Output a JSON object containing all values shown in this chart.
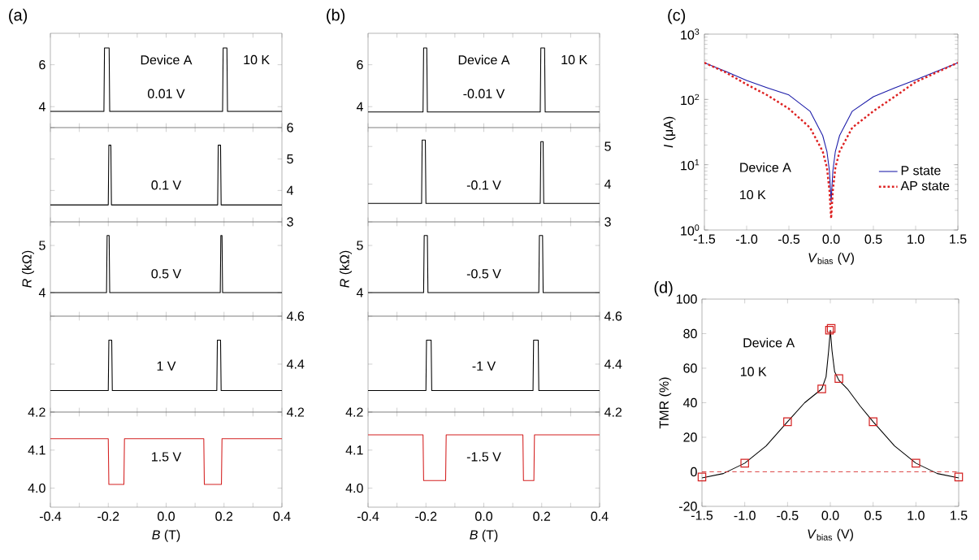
{
  "chart_data": [
    {
      "type": "line",
      "color": "#000000",
      "annotations": [
        "0.01 V",
        "Device A",
        "10 K",
        "(a)"
      ],
      "xlim": [
        -0.4,
        0.4
      ],
      "xticks": [
        -0.4,
        -0.3,
        -0.2,
        -0.1,
        0,
        0.1,
        0.2,
        0.3,
        0.4
      ],
      "ylim": [
        3,
        7.5
      ],
      "yticks": [
        4,
        6
      ],
      "tick_labels": "y",
      "x": [
        -0.4,
        -0.215,
        -0.213,
        -0.197,
        -0.195,
        0.195,
        0.197,
        0.21,
        0.212,
        0.4
      ],
      "values": [
        3.77,
        3.77,
        6.8,
        6.8,
        3.77,
        3.77,
        6.8,
        6.8,
        3.77,
        3.77
      ]
    },
    {
      "type": "line",
      "color": "#000000",
      "annotations": [
        "0.1 V"
      ],
      "xlim": [
        -0.4,
        0.4
      ],
      "xticks": [
        -0.4,
        -0.3,
        -0.2,
        -0.1,
        0,
        0.1,
        0.2,
        0.3,
        0.4
      ],
      "ylim": [
        3,
        6
      ],
      "yticks": [
        3,
        4,
        5,
        6
      ],
      "tick_labels": "y",
      "x": [
        -0.4,
        -0.2,
        -0.198,
        -0.191,
        -0.189,
        0.178,
        0.18,
        0.188,
        0.19,
        0.4
      ],
      "values": [
        3.54,
        3.54,
        5.44,
        5.44,
        3.54,
        3.54,
        5.44,
        5.44,
        3.54,
        3.54
      ]
    },
    {
      "type": "line",
      "color": "#000000",
      "annotations": [
        "0.5 V"
      ],
      "ylabel": "*R* (kΩ)",
      "xlim": [
        -0.4,
        0.4
      ],
      "xticks": [
        -0.4,
        -0.3,
        -0.2,
        -0.1,
        0,
        0.1,
        0.2,
        0.3,
        0.4
      ],
      "ylim": [
        3.5,
        5.5
      ],
      "yticks": [
        4,
        5
      ],
      "tick_labels": "y",
      "x": [
        -0.4,
        -0.206,
        -0.204,
        -0.197,
        -0.195,
        0.187,
        0.189,
        0.193,
        0.195,
        0.4
      ],
      "values": [
        4.0,
        4.0,
        5.21,
        5.21,
        4.0,
        4.0,
        5.21,
        5.21,
        4.0,
        4.0
      ]
    },
    {
      "type": "line",
      "color": "#000000",
      "annotations": [
        "1 V"
      ],
      "xlim": [
        -0.4,
        0.4
      ],
      "xticks": [
        -0.4,
        -0.3,
        -0.2,
        -0.1,
        0,
        0.1,
        0.2,
        0.3,
        0.4
      ],
      "ylim": [
        4.2,
        4.6
      ],
      "yticks": [
        4.2,
        4.4,
        4.6
      ],
      "tick_labels": "y",
      "x": [
        -0.4,
        -0.2,
        -0.198,
        -0.188,
        -0.186,
        0.175,
        0.177,
        0.188,
        0.19,
        0.4
      ],
      "values": [
        4.29,
        4.29,
        4.5,
        4.5,
        4.29,
        4.29,
        4.5,
        4.5,
        4.29,
        4.29
      ]
    },
    {
      "type": "line",
      "color": "#d42020",
      "annotations": [
        "1.5 V"
      ],
      "xlabel": "*B* (T)",
      "xlim": [
        -0.4,
        0.4
      ],
      "xticks": [
        -0.4,
        {
          "value": -0.3,
          "label": null
        },
        -0.2,
        {
          "value": -0.1,
          "label": null
        },
        {
          "value": 0,
          "label": "0.0"
        },
        {
          "value": 0.1,
          "label": null
        },
        0.2,
        {
          "value": 0.3,
          "label": null
        },
        0.4
      ],
      "ylim": [
        3.95,
        4.2
      ],
      "yticks": [
        {
          "value": 4,
          "label": "4.0"
        },
        4.1,
        4.2
      ],
      "x": [
        -0.4,
        -0.2,
        -0.198,
        -0.146,
        -0.144,
        0.13,
        0.132,
        0.191,
        0.193,
        0.4
      ],
      "values": [
        4.13,
        4.13,
        4.01,
        4.01,
        4.13,
        4.13,
        4.01,
        4.01,
        4.13,
        4.13
      ]
    },
    {
      "type": "line",
      "color": "#000000",
      "annotations": [
        "-0.01 V",
        "Device A",
        "10 K",
        "(b)"
      ],
      "xlim": [
        -0.4,
        0.4
      ],
      "xticks": [
        -0.4,
        -0.3,
        -0.2,
        -0.1,
        0,
        0.1,
        0.2,
        0.3,
        0.4
      ],
      "ylim": [
        3,
        7.5
      ],
      "yticks": [
        4,
        6
      ],
      "tick_labels": "y",
      "x": [
        -0.4,
        -0.21,
        -0.208,
        -0.197,
        -0.195,
        0.195,
        0.197,
        0.21,
        0.212,
        0.4
      ],
      "values": [
        3.75,
        3.75,
        6.8,
        6.8,
        3.75,
        3.75,
        6.8,
        6.8,
        3.75,
        3.75
      ]
    },
    {
      "type": "line",
      "color": "#000000",
      "annotations": [
        "-0.1 V"
      ],
      "xlim": [
        -0.4,
        0.4
      ],
      "xticks": [
        -0.4,
        -0.3,
        -0.2,
        -0.1,
        0,
        0.1,
        0.2,
        0.3,
        0.4
      ],
      "ylim": [
        3,
        5.5
      ],
      "yticks": [
        3,
        4,
        5
      ],
      "tick_labels": "y",
      "x": [
        -0.4,
        -0.215,
        -0.213,
        -0.202,
        -0.2,
        0.195,
        0.197,
        0.205,
        0.207,
        0.4
      ],
      "values": [
        3.49,
        3.49,
        5.17,
        5.17,
        3.49,
        3.49,
        5.13,
        5.13,
        3.49,
        3.49
      ]
    },
    {
      "type": "line",
      "color": "#000000",
      "annotations": [
        "-0.5 V"
      ],
      "ylabel": "*R* (kΩ)",
      "xlim": [
        -0.4,
        0.4
      ],
      "xticks": [
        -0.4,
        -0.3,
        -0.2,
        -0.1,
        0,
        0.1,
        0.2,
        0.3,
        0.4
      ],
      "ylim": [
        3.5,
        5.5
      ],
      "yticks": [
        4,
        5
      ],
      "tick_labels": "y",
      "x": [
        -0.4,
        -0.208,
        -0.206,
        -0.195,
        -0.193,
        0.19,
        0.192,
        0.203,
        0.205,
        0.4
      ],
      "values": [
        4.0,
        4.0,
        5.21,
        5.21,
        4.0,
        4.0,
        5.21,
        5.21,
        4.0,
        4.0
      ]
    },
    {
      "type": "line",
      "color": "#000000",
      "annotations": [
        "-1 V"
      ],
      "xlim": [
        -0.4,
        0.4
      ],
      "xticks": [
        -0.4,
        -0.3,
        -0.2,
        -0.1,
        0,
        0.1,
        0.2,
        0.3,
        0.4
      ],
      "ylim": [
        4.2,
        4.6
      ],
      "yticks": [
        4.2,
        4.4,
        4.6
      ],
      "tick_labels": "y",
      "x": [
        -0.4,
        -0.2,
        -0.198,
        -0.182,
        -0.18,
        0.17,
        0.172,
        0.188,
        0.19,
        0.4
      ],
      "values": [
        4.29,
        4.29,
        4.5,
        4.5,
        4.29,
        4.29,
        4.5,
        4.5,
        4.29,
        4.29
      ]
    },
    {
      "type": "line",
      "color": "#d42020",
      "annotations": [
        "-1.5 V"
      ],
      "xlabel": "*B* (T)",
      "xlim": [
        -0.4,
        0.4
      ],
      "xticks": [
        -0.4,
        {
          "value": -0.3,
          "label": null
        },
        -0.2,
        {
          "value": -0.1,
          "label": null
        },
        {
          "value": 0,
          "label": "0.0"
        },
        {
          "value": 0.1,
          "label": null
        },
        0.2,
        {
          "value": 0.3,
          "label": null
        },
        0.4
      ],
      "ylim": [
        3.95,
        4.2
      ],
      "yticks": [
        {
          "value": 4,
          "label": "4.0"
        },
        4.1,
        4.2
      ],
      "x": [
        -0.4,
        -0.21,
        -0.208,
        -0.132,
        -0.13,
        0.135,
        0.137,
        0.173,
        0.175,
        0.4
      ],
      "values": [
        4.14,
        4.14,
        4.02,
        4.02,
        4.14,
        4.14,
        4.02,
        4.02,
        4.14,
        4.14
      ]
    },
    {
      "type": "line",
      "annotations": [
        "Device A",
        "10 K",
        "(c)"
      ],
      "xlabel": "*V*$_{bias}$ (V)",
      "ylabel": "*I* (μA)",
      "log": "y",
      "legend": "right",
      "xlim": [
        -1.5,
        1.5
      ],
      "xticks": [
        -1.5,
        {
          "value": -1,
          "label": "-1.0"
        },
        -0.5,
        {
          "value": 0,
          "label": "0.0"
        },
        0.5,
        {
          "value": 1,
          "label": "1.0"
        },
        1.5
      ],
      "ylim": [
        1,
        1000
      ],
      "yticks": [
        {
          "value": 1,
          "label": "10$^{0}$"
        },
        {
          "value": 10,
          "label": "10$^{1}$"
        },
        {
          "value": 100,
          "label": "10$^{2}$"
        },
        {
          "value": 1000,
          "label": "10$^{3}$"
        }
      ],
      "series": [
        {
          "name": "P state",
          "color": "#1a1aa8",
          "line_style": "solid",
          "x": [
            -1.5,
            -1.25,
            -1.0,
            -0.75,
            -0.5,
            -0.25,
            -0.1,
            -0.05,
            -0.02,
            0,
            0.02,
            0.05,
            0.1,
            0.25,
            0.5,
            0.75,
            1.0,
            1.25,
            1.5
          ],
          "values": [
            365,
            270,
            195,
            150,
            117,
            66,
            28,
            16,
            8,
            2.7,
            8,
            16,
            28,
            66,
            110,
            150,
            200,
            270,
            365
          ]
        },
        {
          "name": "AP state",
          "color": "#dd2020",
          "line_style": "dotted",
          "x": [
            -1.5,
            -1.25,
            -1.0,
            -0.75,
            -0.5,
            -0.25,
            -0.1,
            -0.05,
            -0.02,
            0,
            0.02,
            0.05,
            0.1,
            0.25,
            0.5,
            0.75,
            1.0,
            1.25,
            1.5
          ],
          "values": [
            365,
            260,
            170,
            115,
            72,
            37,
            16,
            9,
            4,
            1.5,
            4,
            9,
            16,
            37,
            66,
            110,
            185,
            260,
            365
          ]
        }
      ]
    },
    {
      "type": "line",
      "annotations": [
        "Device A",
        "10 K",
        "(d)"
      ],
      "xlabel": "*V*$_{bias}$ (V)",
      "ylabel": "TMR (%)",
      "xlim": [
        -1.5,
        1.5
      ],
      "xticks": [
        -1.5,
        {
          "value": -1,
          "label": "-1.0"
        },
        -0.5,
        {
          "value": 0,
          "label": "0.0"
        },
        0.5,
        {
          "value": 1,
          "label": "1.0"
        },
        1.5
      ],
      "ylim": [
        -20,
        100
      ],
      "yticks": [
        -20,
        0,
        20,
        40,
        60,
        80,
        100
      ],
      "ref_lines": [
        {
          "axis": "y",
          "value": 0,
          "color": "#d42020",
          "line_style": "dashed"
        }
      ],
      "series": [
        {
          "type": "line",
          "color": "#000000",
          "x": [
            -1.5,
            -1.25,
            -1,
            -0.75,
            -0.5,
            -0.3,
            -0.15,
            -0.1,
            -0.05,
            -0.02,
            0,
            0.02,
            0.05,
            0.1,
            0.2,
            0.35,
            0.5,
            0.75,
            1,
            1.25,
            1.5
          ],
          "values": [
            -3.5,
            -1,
            5,
            15,
            29,
            40,
            46,
            48,
            55,
            70,
            82,
            70,
            58,
            53,
            48,
            38,
            29,
            15,
            5,
            -1,
            -3.5
          ]
        },
        {
          "type": "scatter",
          "marker": "square",
          "color": "#d42020",
          "x": [
            -1.5,
            -1,
            -0.5,
            -0.1,
            -0.01,
            0.01,
            0.1,
            0.5,
            1,
            1.5
          ],
          "values": [
            -3,
            5,
            29,
            48,
            82,
            83,
            54,
            29,
            5,
            -3
          ]
        }
      ]
    }
  ]
}
